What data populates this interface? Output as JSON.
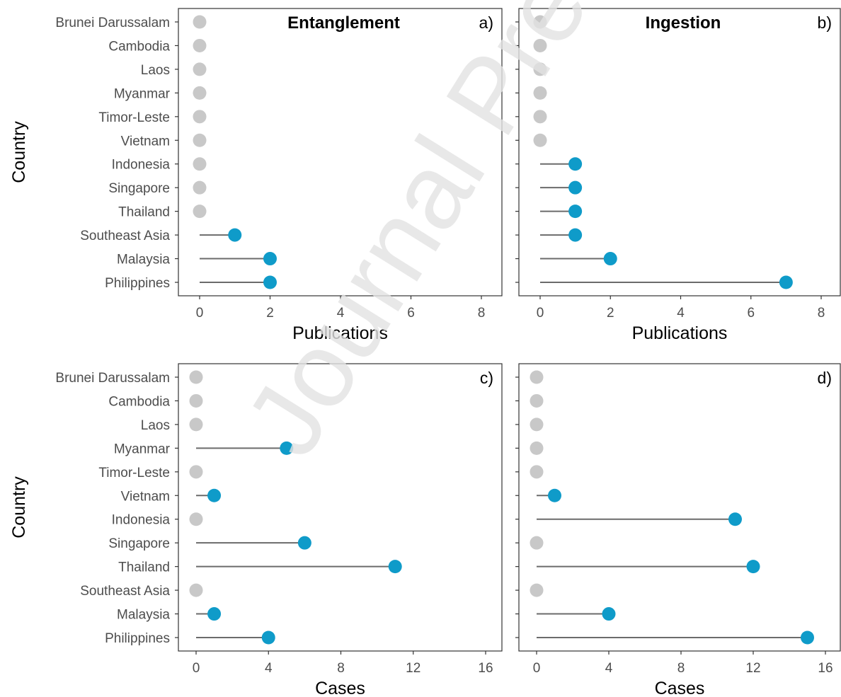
{
  "chart_data": [
    {
      "type": "lollipop",
      "panel_label": "a)",
      "title": "Entanglement",
      "xlabel": "Publications",
      "ylabel": "Country",
      "xlim": [
        0,
        8
      ],
      "xticks": [
        0,
        2,
        4,
        6,
        8
      ],
      "categories": [
        "Brunei Darussalam",
        "Cambodia",
        "Laos",
        "Myanmar",
        "Timor-Leste",
        "Vietnam",
        "Indonesia",
        "Singapore",
        "Thailand",
        "Southeast Asia",
        "Malaysia",
        "Philippines"
      ],
      "values": [
        0,
        0,
        0,
        0,
        0,
        0,
        0,
        0,
        0,
        1,
        2,
        2
      ]
    },
    {
      "type": "lollipop",
      "panel_label": "b)",
      "title": "Ingestion",
      "xlabel": "Publications",
      "ylabel": "",
      "xlim": [
        0,
        8
      ],
      "xticks": [
        0,
        2,
        4,
        6,
        8
      ],
      "categories": [
        "Brunei Darussalam",
        "Cambodia",
        "Laos",
        "Myanmar",
        "Timor-Leste",
        "Vietnam",
        "Indonesia",
        "Singapore",
        "Thailand",
        "Southeast Asia",
        "Malaysia",
        "Philippines"
      ],
      "values": [
        0,
        0,
        0,
        0,
        0,
        0,
        1,
        1,
        1,
        1,
        2,
        7
      ]
    },
    {
      "type": "lollipop",
      "panel_label": "c)",
      "title": "",
      "xlabel": "Cases",
      "ylabel": "Country",
      "xlim": [
        0,
        16
      ],
      "xticks": [
        0,
        4,
        8,
        12,
        16
      ],
      "categories": [
        "Brunei Darussalam",
        "Cambodia",
        "Laos",
        "Myanmar",
        "Timor-Leste",
        "Vietnam",
        "Indonesia",
        "Singapore",
        "Thailand",
        "Southeast Asia",
        "Malaysia",
        "Philippines"
      ],
      "values": [
        0,
        0,
        0,
        5,
        0,
        1,
        0,
        6,
        11,
        0,
        1,
        4
      ]
    },
    {
      "type": "lollipop",
      "panel_label": "d)",
      "title": "",
      "xlabel": "Cases",
      "ylabel": "",
      "xlim": [
        0,
        16
      ],
      "xticks": [
        0,
        4,
        8,
        12,
        16
      ],
      "categories": [
        "Brunei Darussalam",
        "Cambodia",
        "Laos",
        "Myanmar",
        "Timor-Leste",
        "Vietnam",
        "Indonesia",
        "Singapore",
        "Thailand",
        "Southeast Asia",
        "Malaysia",
        "Philippines"
      ],
      "values": [
        0,
        0,
        0,
        0,
        0,
        1,
        11,
        0,
        12,
        0,
        4,
        15
      ]
    }
  ],
  "colors": {
    "positive_point": "#0f9bc9",
    "zero_point": "#c8c8c8",
    "stem": "#6b6b6b",
    "axis_text": "#4d4d4d",
    "title_text": "#000000"
  },
  "watermark": "Journal Pre"
}
